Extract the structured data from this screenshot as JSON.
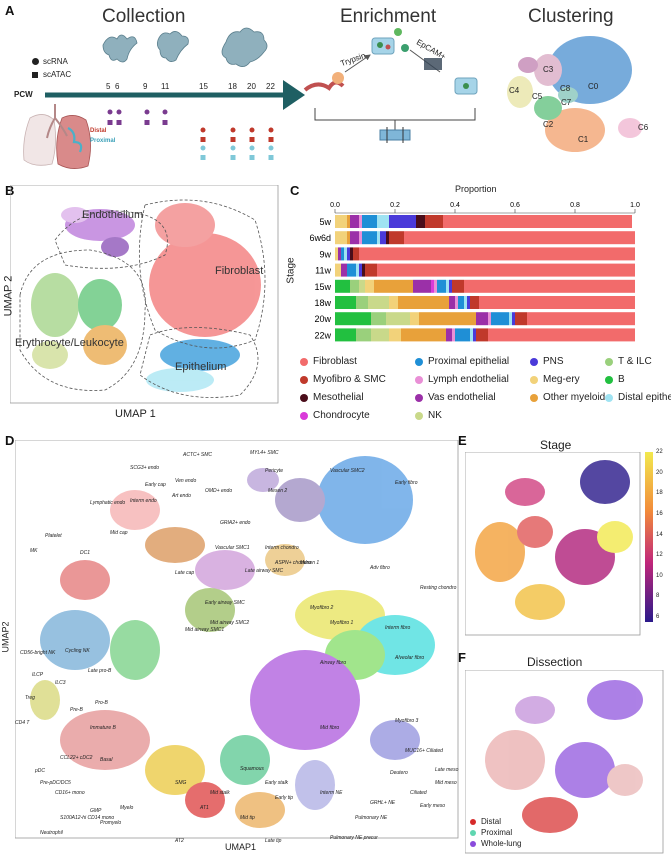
{
  "panelA": {
    "letter": "A",
    "collection_title": "Collection",
    "enrichment_title": "Enrichment",
    "clustering_title": "Clustering",
    "legend_scrna": "scRNA",
    "legend_scatac": "scATAC",
    "pcw_label": "PCW",
    "timepoints": [
      "5",
      "6",
      "9",
      "11",
      "15",
      "18",
      "20",
      "22"
    ],
    "distal_label": "Distal",
    "proximal_label": "Proximal",
    "trypsin_label": "Trypsin",
    "epcam_label": "EpCAM+",
    "clusters": [
      "C0",
      "C1",
      "C2",
      "C3",
      "C4",
      "C5",
      "C6",
      "C7",
      "C8"
    ],
    "colors": {
      "teal": "#1f5f63",
      "distal": "#c0392b",
      "proximal": "#7fc8d8",
      "purple": "#7a3b8f"
    }
  },
  "panelB": {
    "letter": "B",
    "regions": [
      "Endothelium",
      "Fibroblast",
      "Erythrocyte/Leukocyte",
      "Epithelium"
    ],
    "xlabel": "UMAP 1",
    "ylabel": "UMAP 2"
  },
  "panelC": {
    "letter": "C",
    "legend": [
      {
        "name": "Fibroblast",
        "color": "#f26b6b"
      },
      {
        "name": "Proximal epithelial",
        "color": "#1f8fd6"
      },
      {
        "name": "PNS",
        "color": "#4a3ad9"
      },
      {
        "name": "T & ILC",
        "color": "#9ad07c"
      },
      {
        "name": "Myofibro & SMC",
        "color": "#c0392b"
      },
      {
        "name": "Lymph endothelial",
        "color": "#e98fd6"
      },
      {
        "name": "Meg-ery",
        "color": "#f2d27a"
      },
      {
        "name": "B",
        "color": "#22c040"
      },
      {
        "name": "Mesothelial",
        "color": "#4a0d1a"
      },
      {
        "name": "Vas endothelial",
        "color": "#9b30a8"
      },
      {
        "name": "Other myeloid",
        "color": "#e8a13a"
      },
      {
        "name": "Distal epithelial",
        "color": "#9fe3f2"
      },
      {
        "name": "Chondrocyte",
        "color": "#d93ad9"
      },
      {
        "name": "NK",
        "color": "#c9d98a"
      }
    ]
  },
  "chart_data": {
    "type": "bar",
    "orientation": "horizontal-stacked",
    "title": "Proportion",
    "xlabel": "Proportion",
    "ylabel": "Stage",
    "xlim": [
      0.0,
      1.0
    ],
    "xticks": [
      "0.0",
      "0.2",
      "0.4",
      "0.6",
      "0.8",
      "1.0"
    ],
    "categories": [
      "5w",
      "6w6d",
      "9w",
      "11w",
      "15w",
      "18w",
      "20w",
      "22w"
    ],
    "series": [
      {
        "name": "B",
        "values": [
          0,
          0,
          0,
          0,
          0.05,
          0.07,
          0.12,
          0.07
        ]
      },
      {
        "name": "T & ILC",
        "values": [
          0,
          0,
          0,
          0,
          0.03,
          0.04,
          0.05,
          0.05
        ]
      },
      {
        "name": "NK",
        "values": [
          0,
          0,
          0,
          0,
          0.02,
          0.07,
          0.08,
          0.06
        ]
      },
      {
        "name": "Meg-ery",
        "values": [
          0.04,
          0.04,
          0.01,
          0.02,
          0.03,
          0.03,
          0.03,
          0.04
        ]
      },
      {
        "name": "Other myeloid",
        "values": [
          0.01,
          0.01,
          0,
          0,
          0.13,
          0.17,
          0.19,
          0.15
        ]
      },
      {
        "name": "Vas endothelial",
        "values": [
          0.03,
          0.03,
          0.01,
          0.02,
          0.06,
          0.02,
          0.04,
          0.02
        ]
      },
      {
        "name": "Chondrocyte",
        "values": [
          0,
          0,
          0,
          0,
          0.01,
          0,
          0,
          0
        ]
      },
      {
        "name": "Lymph endothelial",
        "values": [
          0.01,
          0.01,
          0,
          0,
          0.01,
          0.01,
          0.01,
          0.01
        ]
      },
      {
        "name": "Proximal epithelial",
        "values": [
          0.05,
          0.05,
          0.01,
          0.03,
          0.03,
          0.02,
          0.06,
          0.05
        ]
      },
      {
        "name": "Distal epithelial",
        "values": [
          0.04,
          0.01,
          0.01,
          0.01,
          0.01,
          0.01,
          0.01,
          0.01
        ]
      },
      {
        "name": "PNS",
        "values": [
          0.09,
          0.02,
          0.01,
          0.01,
          0.01,
          0.01,
          0.01,
          0.01
        ]
      },
      {
        "name": "Mesothelial",
        "values": [
          0.03,
          0.01,
          0.01,
          0.01,
          0,
          0,
          0,
          0
        ]
      },
      {
        "name": "Myofibro & SMC",
        "values": [
          0.06,
          0.05,
          0.02,
          0.04,
          0.04,
          0.03,
          0.04,
          0.04
        ]
      },
      {
        "name": "Fibroblast",
        "values": [
          0.63,
          0.77,
          0.92,
          0.86,
          0.57,
          0.52,
          0.36,
          0.49
        ]
      }
    ]
  },
  "panelD": {
    "letter": "D",
    "xlabel": "UMAP1",
    "ylabel": "UMAP2",
    "labels": [
      "ACTC+ SMC",
      "MYL4+ SMC",
      "SCG3+ endo",
      "Pericyte",
      "Vascular SMC2",
      "Early fibro",
      "Lymphatic endo",
      "Interm endo",
      "Early cap",
      "Ven endo",
      "Art endo",
      "OMD+ endo",
      "Mesen 2",
      "Mid cap",
      "GRIA2+ endo",
      "Vascular SMC1",
      "Interm chondro",
      "ASPN+ chondro",
      "Mesen 1",
      "Platelet",
      "MK",
      "DC1",
      "Late cap",
      "Late airway SMC",
      "Early airway SMC",
      "Mid airway SMC2",
      "Adv fibro",
      "Resting chondro",
      "Mid airway SMC1",
      "Myofibro 2",
      "Myofibro 1",
      "Interm fibro",
      "Alveolar fibro",
      "Airway fibro",
      "Mid fibro",
      "Myofibro 3",
      "CD56-bright NK",
      "Cycling NK",
      "ILCP",
      "Treg",
      "CD4 T",
      "ILC3",
      "Late pro-B",
      "Immature B",
      "Pre-B",
      "Pro-B",
      "CCL22+ cDC2",
      "pDC",
      "Pre-pDC/DC5",
      "CD16+ mono",
      "S100A12-hi CD14 mono",
      "Neutrophil",
      "GMP",
      "Promyelo",
      "Myelo",
      "AT1",
      "AT2",
      "Late tip",
      "Mid tip",
      "Mid stalk",
      "Early tip",
      "Early stalk",
      "Pulmonary NE",
      "Pulmonary NE precur",
      "GRHL+ NE",
      "Interm NE",
      "Ciliated",
      "MUC16+ Ciliated",
      "Deutero",
      "Late meso",
      "Mid meso",
      "Early meso",
      "Basal",
      "SMG",
      "Squamous"
    ]
  },
  "panelE": {
    "letter": "E",
    "title": "Stage",
    "colorbar_ticks": [
      "22",
      "20",
      "18",
      "16",
      "14",
      "12",
      "10",
      "8",
      "6"
    ]
  },
  "panelF": {
    "letter": "F",
    "title": "Dissection",
    "legend": [
      {
        "name": "Distal",
        "color": "#d62a2a"
      },
      {
        "name": "Proximal",
        "color": "#5fd6b0"
      },
      {
        "name": "Whole-lung",
        "color": "#8a4bdc"
      }
    ]
  }
}
